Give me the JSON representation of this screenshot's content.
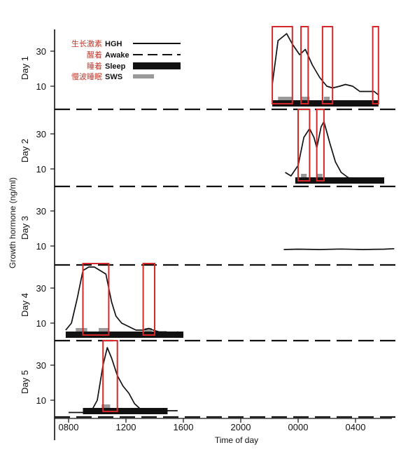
{
  "chart_data": {
    "type": "line",
    "ylabel": "Growth hormone (ng/ml)",
    "xlabel": "Time of day",
    "x_ticks": [
      "0800",
      "1200",
      "1600",
      "2000",
      "0000",
      "0400"
    ],
    "y_ticks": [
      "10",
      "30"
    ],
    "legend": [
      {
        "cn": "生长激素",
        "en": "HGH",
        "style": "solid"
      },
      {
        "cn": "醒着",
        "en": "Awake",
        "style": "dashed"
      },
      {
        "cn": "睡着",
        "en": "Sleep",
        "style": "bar"
      },
      {
        "cn": "慢波睡眠",
        "en": "SWS",
        "style": "stipple"
      }
    ],
    "days": [
      {
        "label": "Day 1",
        "hgh": [
          [
            22.2,
            11
          ],
          [
            22.6,
            36
          ],
          [
            23.2,
            40
          ],
          [
            23.6,
            34
          ],
          [
            24.1,
            28
          ],
          [
            24.5,
            31
          ],
          [
            25.0,
            22
          ],
          [
            25.5,
            15
          ],
          [
            26.0,
            10
          ],
          [
            26.4,
            9
          ],
          [
            26.9,
            10
          ],
          [
            27.3,
            11
          ],
          [
            27.8,
            10
          ],
          [
            28.3,
            7
          ],
          [
            28.9,
            7
          ],
          [
            29.3,
            7
          ],
          [
            29.6,
            5
          ]
        ],
        "sleep": [
          22.2,
          29.6
        ],
        "sws": [
          [
            22.6,
            23.6
          ],
          [
            24.2,
            24.8
          ],
          [
            25.8,
            26.2
          ]
        ],
        "highlights": [
          [
            22.2,
            23.6
          ],
          [
            24.2,
            24.7
          ],
          [
            25.7,
            26.4
          ],
          [
            29.2,
            29.6
          ]
        ]
      },
      {
        "label": "Day 2",
        "hgh": [
          [
            23.1,
            8
          ],
          [
            23.5,
            6
          ],
          [
            24.0,
            12
          ],
          [
            24.4,
            28
          ],
          [
            24.8,
            33
          ],
          [
            25.1,
            28
          ],
          [
            25.3,
            22
          ],
          [
            25.6,
            34
          ],
          [
            25.8,
            37
          ],
          [
            26.2,
            25
          ],
          [
            26.6,
            14
          ],
          [
            27.0,
            8
          ],
          [
            27.5,
            5
          ],
          [
            28.2,
            4
          ],
          [
            29.0,
            4
          ],
          [
            30.0,
            4
          ]
        ],
        "sleep": [
          23.8,
          30.0
        ],
        "sws": [
          [
            24.2,
            24.6
          ],
          [
            25.3,
            25.7
          ]
        ],
        "highlights": [
          [
            24.0,
            24.8
          ],
          [
            25.3,
            25.8
          ]
        ]
      },
      {
        "label": "Day 3",
        "hgh": [
          [
            23.0,
            8
          ],
          [
            24.0,
            8.2
          ],
          [
            25.5,
            8.0
          ],
          [
            27.0,
            8.3
          ],
          [
            28.5,
            8.0
          ],
          [
            30.0,
            8.2
          ],
          [
            30.7,
            8.5
          ]
        ],
        "sleep": null,
        "sws": [],
        "highlights": []
      },
      {
        "label": "Day 4",
        "hgh": [
          [
            7.8,
            6
          ],
          [
            8.2,
            10
          ],
          [
            8.6,
            24
          ],
          [
            9.0,
            40
          ],
          [
            9.4,
            42
          ],
          [
            9.8,
            42
          ],
          [
            10.2,
            40
          ],
          [
            10.6,
            38
          ],
          [
            11.0,
            22
          ],
          [
            11.3,
            14
          ],
          [
            11.7,
            10
          ],
          [
            12.2,
            8
          ],
          [
            12.7,
            6
          ],
          [
            13.2,
            6
          ],
          [
            13.6,
            7
          ],
          [
            13.9,
            6
          ],
          [
            14.3,
            5
          ],
          [
            14.8,
            5
          ],
          [
            15.3,
            4
          ],
          [
            15.6,
            5
          ],
          [
            16.0,
            3
          ]
        ],
        "sleep": [
          7.8,
          16.0
        ],
        "sws": [
          [
            8.5,
            9.3
          ],
          [
            10.1,
            10.8
          ],
          [
            13.3,
            13.8
          ]
        ],
        "highlights": [
          [
            9.0,
            10.8
          ],
          [
            13.2,
            14.0
          ]
        ]
      },
      {
        "label": "Day 5",
        "hgh": [
          [
            8.0,
            3
          ],
          [
            8.5,
            3
          ],
          [
            9.0,
            3
          ],
          [
            9.6,
            4
          ],
          [
            10.0,
            10
          ],
          [
            10.4,
            30
          ],
          [
            10.7,
            40
          ],
          [
            11.0,
            34
          ],
          [
            11.4,
            24
          ],
          [
            11.8,
            18
          ],
          [
            12.2,
            14
          ],
          [
            12.6,
            8
          ],
          [
            13.0,
            5
          ],
          [
            13.5,
            4
          ],
          [
            14.2,
            4
          ],
          [
            15.0,
            4
          ],
          [
            15.6,
            4
          ]
        ],
        "sleep": [
          9.0,
          14.9
        ],
        "sws": [
          [
            10.3,
            10.9
          ]
        ],
        "highlights": [
          [
            10.4,
            11.4
          ]
        ]
      }
    ]
  }
}
